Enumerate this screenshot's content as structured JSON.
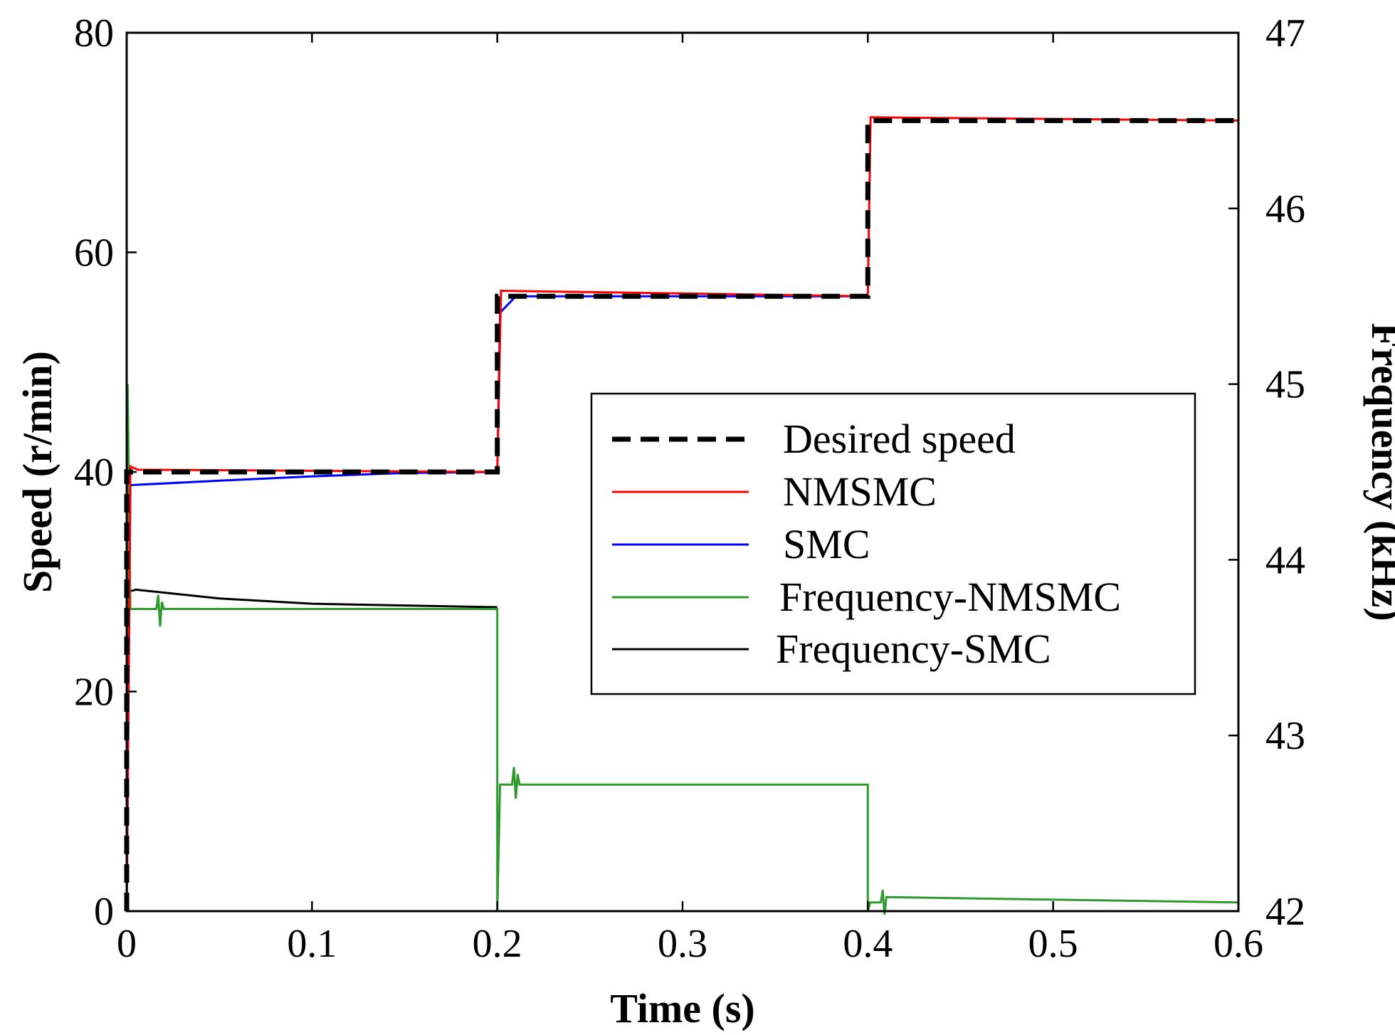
{
  "chart_data": {
    "type": "line",
    "title": "",
    "xlabel": "Time (s)",
    "ylabel": "Speed (r/min)",
    "y2label": "Frequency (kHz)",
    "xlim": [
      0,
      0.6
    ],
    "ylim": [
      0,
      80
    ],
    "y2lim": [
      42,
      47
    ],
    "xticks": [
      "0",
      "0.1",
      "0.2",
      "0.3",
      "0.4",
      "0.5",
      "0.6"
    ],
    "yticks": [
      "0",
      "20",
      "40",
      "60",
      "80"
    ],
    "y2ticks": [
      "42",
      "43",
      "44",
      "45",
      "46",
      "47"
    ],
    "grid": false,
    "legend_position": "center-right",
    "series": [
      {
        "name": "Desired speed",
        "axis": "left",
        "color": "#000000",
        "style": "dashed",
        "x": [
          0.0,
          0.0,
          0.2,
          0.2,
          0.4,
          0.4,
          0.6
        ],
        "y": [
          0,
          40,
          40,
          56,
          56,
          72,
          72
        ]
      },
      {
        "name": "NMSMC",
        "axis": "left",
        "color": "#ff0000",
        "style": "solid",
        "x": [
          0.0,
          0.002,
          0.006,
          0.2,
          0.202,
          0.4,
          0.4015,
          0.6
        ],
        "y": [
          0,
          40.5,
          40.2,
          40,
          56.5,
          56,
          72.3,
          72
        ]
      },
      {
        "name": "SMC",
        "axis": "left",
        "color": "#0000ff",
        "style": "solid",
        "x": [
          0.0,
          0.002,
          0.05,
          0.1,
          0.15,
          0.2,
          0.2015,
          0.21,
          0.4
        ],
        "y": [
          0,
          38.8,
          39.2,
          39.6,
          39.9,
          40,
          54.5,
          56,
          56
        ]
      },
      {
        "name": "Frequency-NMSMC",
        "axis": "right",
        "color": "#2e9a2e",
        "style": "solid",
        "x": [
          0.0,
          0.0005,
          0.002,
          0.016,
          0.017,
          0.018,
          0.019,
          0.02,
          0.2,
          0.2,
          0.2015,
          0.203,
          0.208,
          0.209,
          0.21,
          0.211,
          0.212,
          0.4,
          0.4,
          0.4012,
          0.407,
          0.408,
          0.409,
          0.41,
          0.6
        ],
        "y": [
          42.0,
          45.0,
          43.72,
          43.72,
          43.8,
          43.62,
          43.76,
          43.72,
          43.72,
          42.0,
          42.72,
          42.72,
          42.72,
          42.82,
          42.64,
          42.78,
          42.72,
          42.72,
          42.0,
          42.05,
          42.05,
          42.12,
          41.98,
          42.08,
          42.05
        ]
      },
      {
        "name": "Frequency-SMC",
        "axis": "right",
        "color": "#000000",
        "style": "solid",
        "x": [
          0.0015,
          0.005,
          0.05,
          0.1,
          0.15,
          0.2
        ],
        "y": [
          43.82,
          43.83,
          43.78,
          43.75,
          43.74,
          43.73
        ]
      }
    ]
  }
}
